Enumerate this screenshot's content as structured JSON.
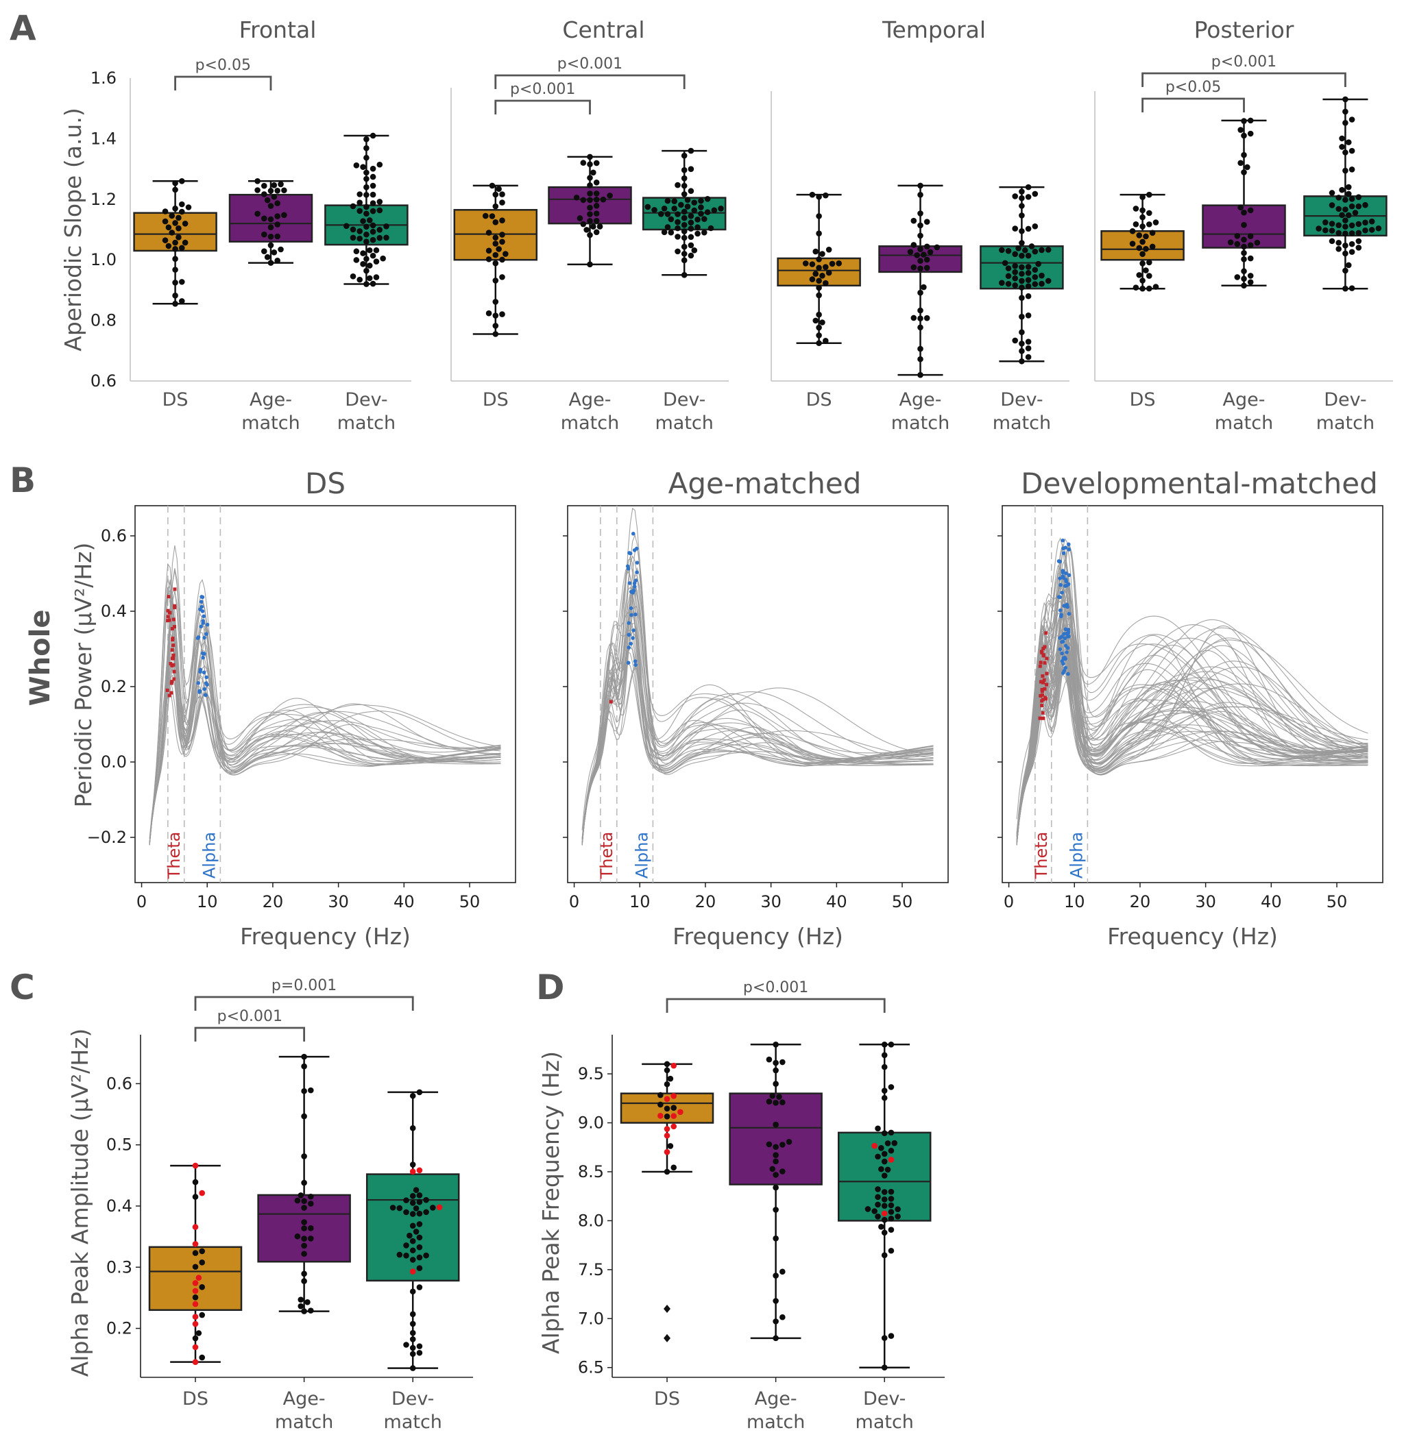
{
  "colors": {
    "ds": "#c88a1c",
    "age": "#6a1f72",
    "dev": "#178a68",
    "theta": "#c0262c",
    "alpha": "#2f74c9",
    "text": "#555555",
    "axis": "#cfcfcf",
    "trace": "#9a9a9a"
  },
  "panel_labels": {
    "a": "A",
    "b": "B",
    "c": "C",
    "d": "D"
  },
  "panel_a": {
    "ylabel": "Aperiodic Slope (a.u.)",
    "yticks": [
      "0.6",
      "0.8",
      "1.0",
      "1.2",
      "1.4",
      "1.6"
    ],
    "groups": [
      [
        "DS"
      ],
      [
        "Age-",
        "match"
      ],
      [
        "Dev-",
        "match"
      ]
    ],
    "regions": [
      {
        "title": "Frontal",
        "boxes": [
          {
            "q1": 1.03,
            "med": 1.085,
            "q3": 1.155,
            "lo": 0.855,
            "hi": 1.26,
            "n": 30,
            "seed": 11
          },
          {
            "q1": 1.06,
            "med": 1.12,
            "q3": 1.215,
            "lo": 0.99,
            "hi": 1.26,
            "n": 30,
            "seed": 12
          },
          {
            "q1": 1.05,
            "med": 1.115,
            "q3": 1.18,
            "lo": 0.92,
            "hi": 1.41,
            "n": 60,
            "seed": 13
          }
        ],
        "brackets": [
          {
            "from": 0,
            "to": 1,
            "level": 0,
            "label": "p<0.05"
          }
        ]
      },
      {
        "title": "Central",
        "boxes": [
          {
            "q1": 1.0,
            "med": 1.085,
            "q3": 1.165,
            "lo": 0.755,
            "hi": 1.245,
            "n": 30,
            "seed": 21
          },
          {
            "q1": 1.12,
            "med": 1.2,
            "q3": 1.24,
            "lo": 0.985,
            "hi": 1.34,
            "n": 30,
            "seed": 22
          },
          {
            "q1": 1.1,
            "med": 1.155,
            "q3": 1.205,
            "lo": 0.95,
            "hi": 1.36,
            "n": 60,
            "seed": 23
          }
        ],
        "brackets": [
          {
            "from": 0,
            "to": 1,
            "level": 0,
            "label": "p<0.001"
          },
          {
            "from": 0,
            "to": 2,
            "level": 1,
            "label": "p<0.001"
          }
        ]
      },
      {
        "title": "Temporal",
        "boxes": [
          {
            "q1": 0.915,
            "med": 0.965,
            "q3": 1.005,
            "lo": 0.725,
            "hi": 1.215,
            "n": 30,
            "seed": 31
          },
          {
            "q1": 0.96,
            "med": 1.015,
            "q3": 1.045,
            "lo": 0.62,
            "hi": 1.245,
            "n": 30,
            "seed": 32
          },
          {
            "q1": 0.905,
            "med": 0.99,
            "q3": 1.045,
            "lo": 0.665,
            "hi": 1.24,
            "n": 60,
            "seed": 33
          }
        ],
        "brackets": []
      },
      {
        "title": "Posterior",
        "boxes": [
          {
            "q1": 1.0,
            "med": 1.035,
            "q3": 1.095,
            "lo": 0.905,
            "hi": 1.215,
            "n": 30,
            "seed": 41
          },
          {
            "q1": 1.04,
            "med": 1.085,
            "q3": 1.18,
            "lo": 0.915,
            "hi": 1.46,
            "n": 30,
            "seed": 42
          },
          {
            "q1": 1.08,
            "med": 1.145,
            "q3": 1.21,
            "lo": 0.905,
            "hi": 1.53,
            "n": 60,
            "seed": 43
          }
        ],
        "brackets": [
          {
            "from": 0,
            "to": 1,
            "level": 0,
            "label": "p<0.05"
          },
          {
            "from": 0,
            "to": 2,
            "level": 1,
            "label": "p<0.001"
          }
        ]
      }
    ]
  },
  "panel_b": {
    "row_label": "Whole",
    "ylabel": "Periodic Power (μV²/Hz)",
    "xlabel": "Frequency (Hz)",
    "xticks": [
      "0",
      "10",
      "20",
      "30",
      "40",
      "50"
    ],
    "yticks": [
      "−0.2",
      "0.0",
      "0.2",
      "0.4",
      "0.6"
    ],
    "xlim": [
      -1,
      57
    ],
    "ylim": [
      -0.32,
      0.68
    ],
    "band_lines": [
      4,
      6.5,
      12
    ],
    "band_labels": {
      "theta": "Theta",
      "alpha": "Alpha"
    },
    "panels": [
      {
        "title": "DS",
        "n": 30,
        "seed": 101,
        "theta_peak": 4.5,
        "alpha_peak": 9.3,
        "theta_amp": 0.42,
        "alpha_amp": 0.3,
        "beta_f": 28,
        "beta_amp": 0.1
      },
      {
        "title": "Age-matched",
        "n": 30,
        "seed": 202,
        "theta_peak": 5.5,
        "alpha_peak": 8.9,
        "theta_amp": 0.2,
        "alpha_amp": 0.44,
        "beta_f": 26,
        "beta_amp": 0.12
      },
      {
        "title": "Developmental-matched",
        "n": 60,
        "seed": 303,
        "theta_peak": 5.2,
        "alpha_peak": 8.4,
        "theta_amp": 0.24,
        "alpha_amp": 0.4,
        "beta_f": 27,
        "beta_amp": 0.22
      }
    ]
  },
  "panel_c": {
    "ylabel": "Alpha Peak Amplitude (μV²/Hz)",
    "yticks": [
      "0.2",
      "0.3",
      "0.4",
      "0.5",
      "0.6"
    ],
    "ylim": [
      0.12,
      0.68
    ],
    "groups": [
      [
        "DS"
      ],
      [
        "Age-",
        "match"
      ],
      [
        "Dev-",
        "match"
      ]
    ],
    "boxes": [
      {
        "q1": 0.23,
        "med": 0.293,
        "q3": 0.333,
        "lo": 0.145,
        "hi": 0.466,
        "n": 24,
        "seed": 51,
        "red": 12
      },
      {
        "q1": 0.309,
        "med": 0.387,
        "q3": 0.418,
        "lo": 0.228,
        "hi": 0.644,
        "n": 28,
        "seed": 52,
        "red": 0
      },
      {
        "q1": 0.278,
        "med": 0.41,
        "q3": 0.452,
        "lo": 0.135,
        "hi": 0.586,
        "n": 50,
        "seed": 53,
        "red": 4
      }
    ],
    "brackets": [
      {
        "from": 0,
        "to": 1,
        "level": 0,
        "label": "p<0.001"
      },
      {
        "from": 0,
        "to": 2,
        "level": 1,
        "label": "p=0.001"
      }
    ]
  },
  "panel_d": {
    "ylabel": "Alpha Peak Frequency (Hz)",
    "yticks": [
      "6.5",
      "7.0",
      "7.5",
      "8.0",
      "8.5",
      "9.0",
      "9.5"
    ],
    "ylim": [
      6.4,
      9.9
    ],
    "groups": [
      [
        "DS"
      ],
      [
        "Age-",
        "match"
      ],
      [
        "Dev-",
        "match"
      ]
    ],
    "boxes": [
      {
        "q1": 9.0,
        "med": 9.2,
        "q3": 9.3,
        "lo": 8.5,
        "hi": 9.6,
        "n": 22,
        "seed": 61,
        "red": 10,
        "outliers": [
          7.1,
          6.8
        ]
      },
      {
        "q1": 8.37,
        "med": 8.95,
        "q3": 9.3,
        "lo": 6.8,
        "hi": 9.8,
        "n": 30,
        "seed": 62,
        "red": 0,
        "outliers": []
      },
      {
        "q1": 8.0,
        "med": 8.4,
        "q3": 8.9,
        "lo": 6.5,
        "hi": 9.8,
        "n": 48,
        "seed": 63,
        "red": 3,
        "outliers": []
      }
    ],
    "brackets": [
      {
        "from": 0,
        "to": 2,
        "level": 0,
        "label": "p<0.001"
      }
    ]
  }
}
